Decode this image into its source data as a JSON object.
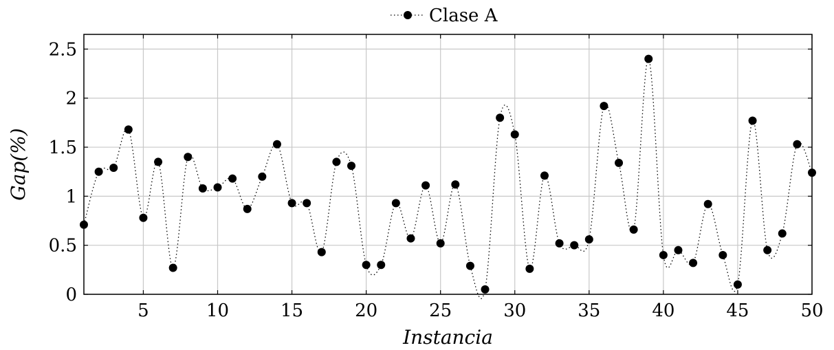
{
  "chart_data": {
    "type": "line",
    "xlabel": "Instancia",
    "ylabel": "Gap(%)",
    "xlim": [
      1,
      50
    ],
    "ylim": [
      0,
      2.65
    ],
    "xticks": [
      5,
      10,
      15,
      20,
      25,
      30,
      35,
      40,
      45,
      50
    ],
    "yticks": [
      0,
      0.5,
      1,
      1.5,
      2,
      2.5
    ],
    "grid": true,
    "legend_position": "top-center",
    "line_style": "dotted, smooth",
    "marker": "filled-circle",
    "series": [
      {
        "name": "Clase A",
        "color": "#000000",
        "x": [
          1,
          2,
          3,
          4,
          5,
          6,
          7,
          8,
          9,
          10,
          11,
          12,
          13,
          14,
          15,
          16,
          17,
          18,
          19,
          20,
          21,
          22,
          23,
          24,
          25,
          26,
          27,
          28,
          29,
          30,
          31,
          32,
          33,
          34,
          35,
          36,
          37,
          38,
          39,
          40,
          41,
          42,
          43,
          44,
          45,
          46,
          47,
          48,
          49,
          50
        ],
        "y": [
          0.71,
          1.25,
          1.29,
          1.68,
          0.78,
          1.35,
          0.27,
          1.4,
          1.08,
          1.09,
          1.18,
          0.87,
          1.2,
          1.53,
          0.93,
          0.93,
          0.43,
          1.35,
          1.31,
          0.3,
          0.3,
          0.93,
          0.57,
          1.11,
          0.52,
          1.12,
          0.29,
          0.05,
          1.8,
          1.63,
          0.26,
          1.21,
          0.52,
          0.5,
          0.56,
          1.92,
          1.34,
          0.66,
          2.4,
          0.4,
          0.45,
          0.32,
          0.92,
          0.4,
          0.1,
          1.77,
          0.45,
          0.62,
          1.53,
          1.24
        ]
      }
    ]
  }
}
